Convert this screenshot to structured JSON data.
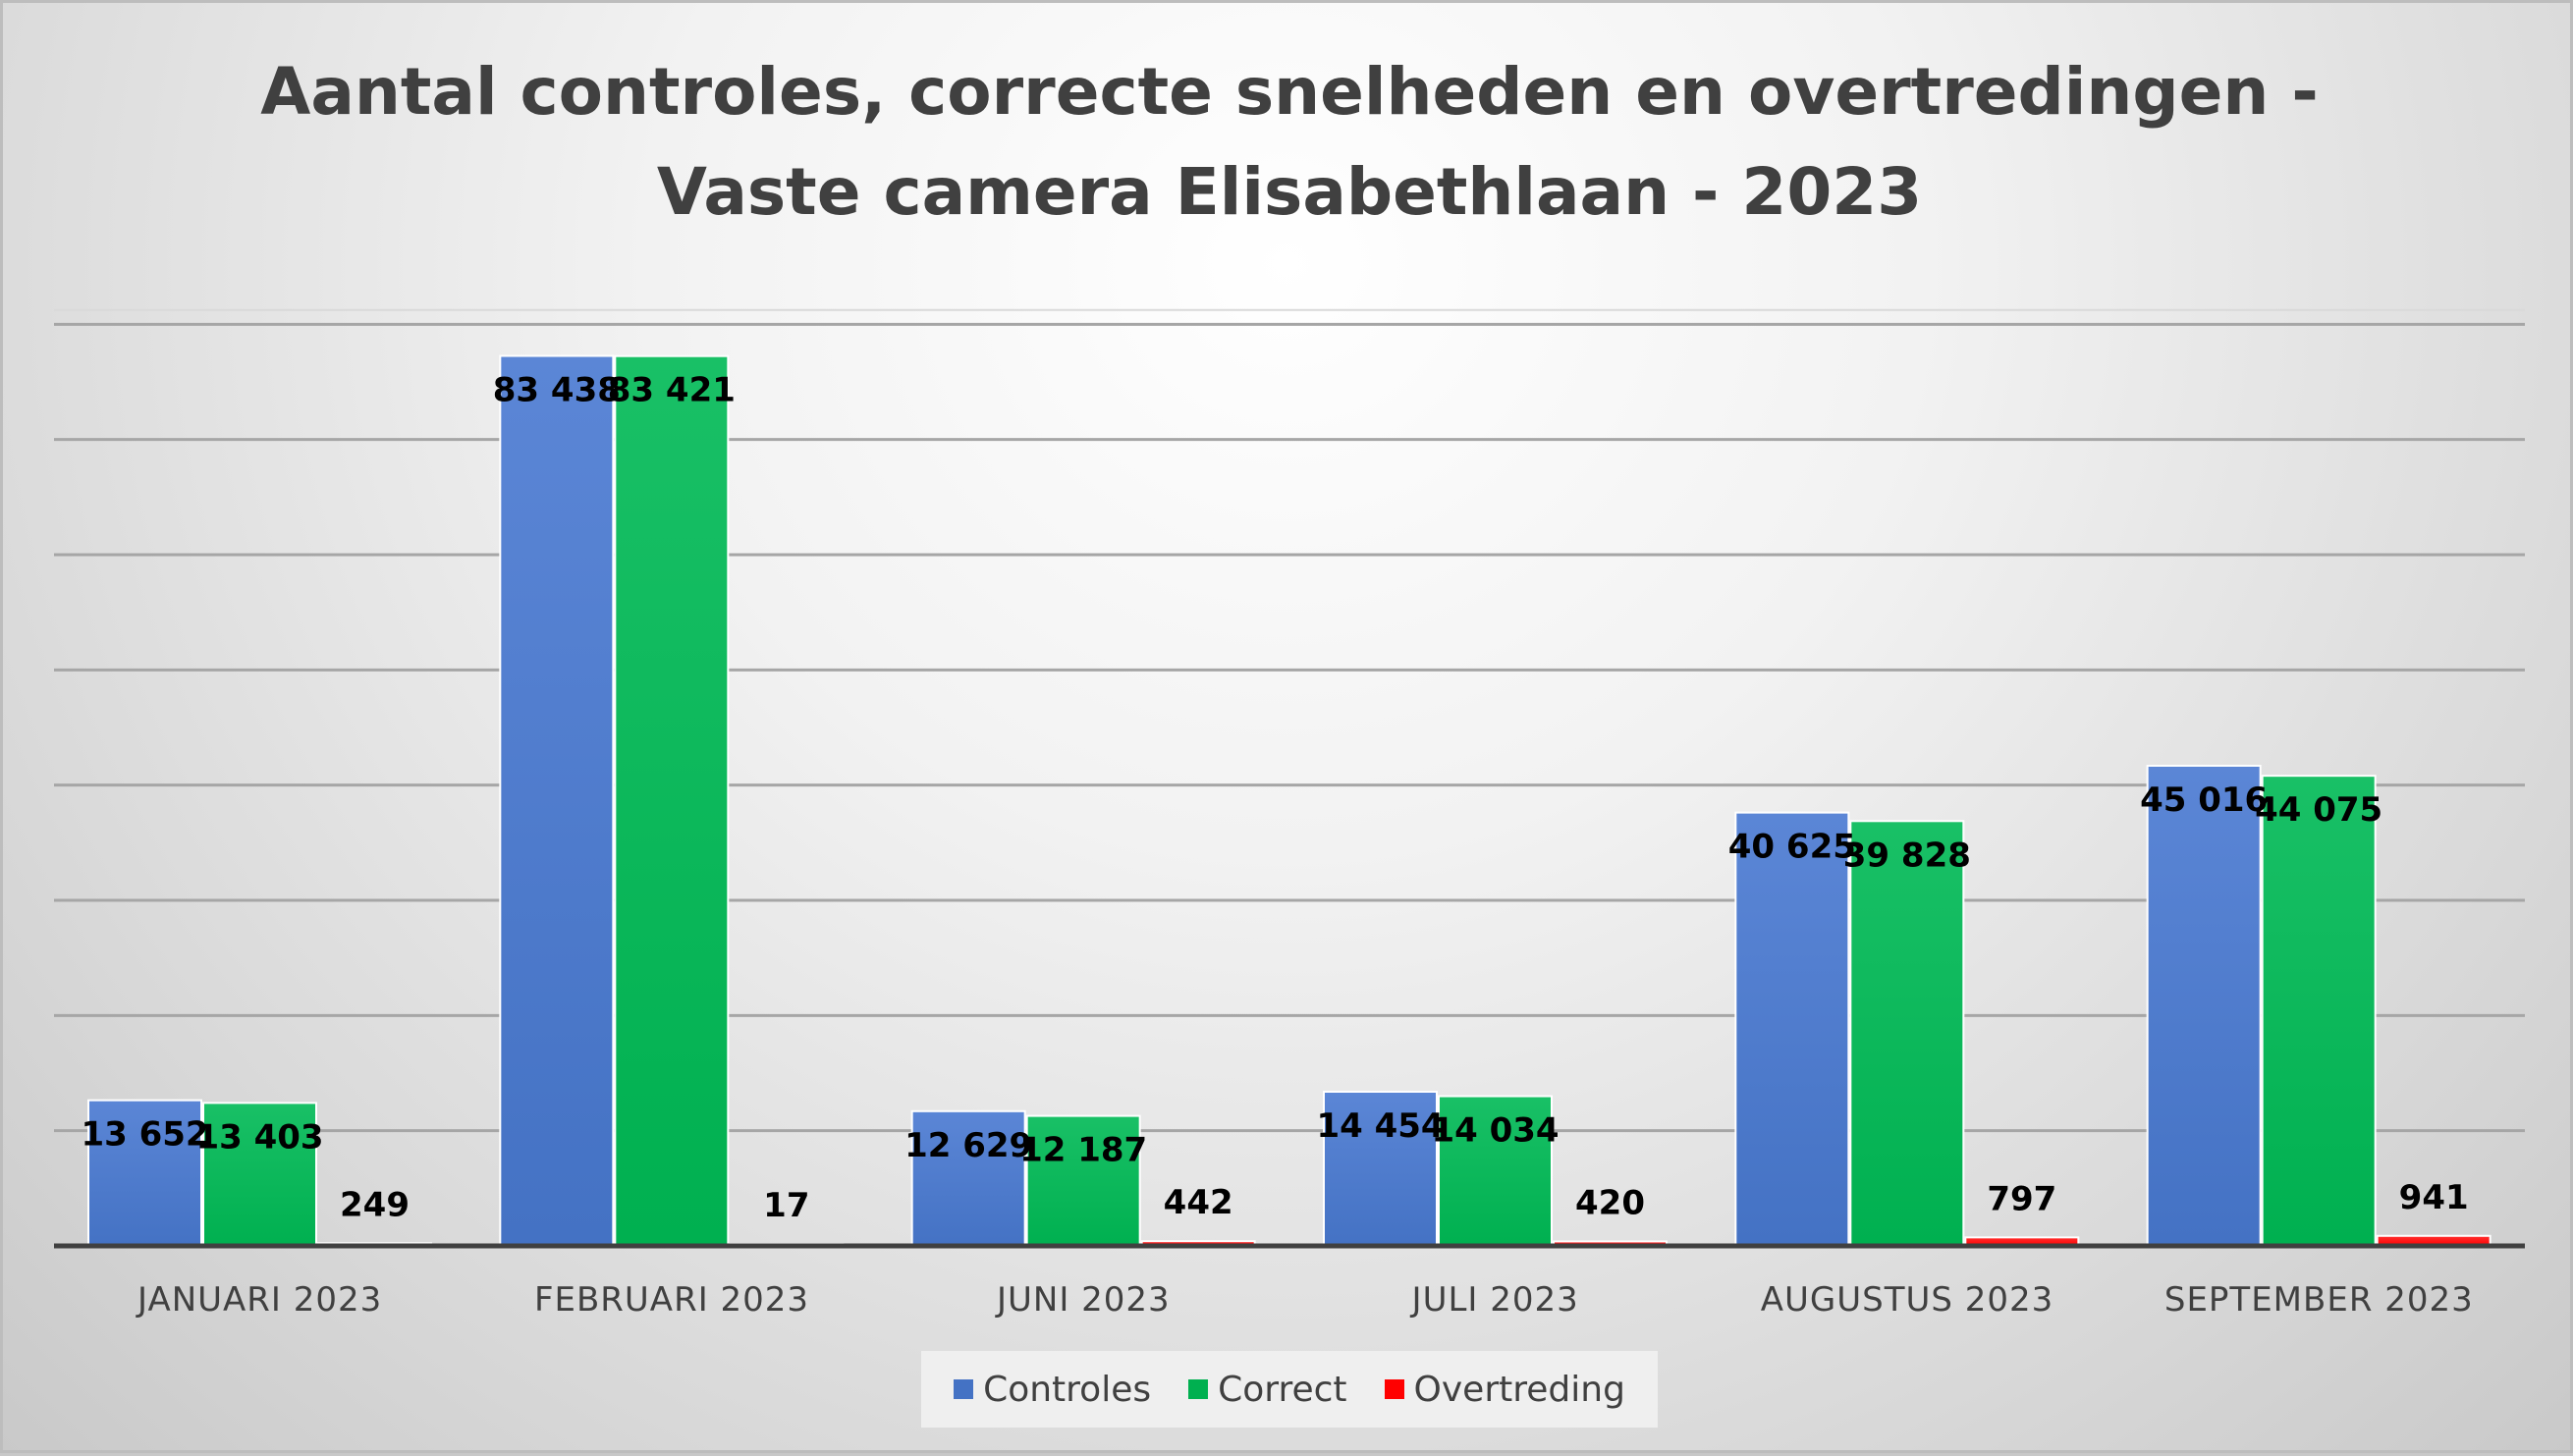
{
  "chart_data": {
    "type": "bar",
    "title_line1": "Aantal controles, correcte snelheden en overtredingen -",
    "title_line2": "Vaste camera Elisabethlaan - 2023",
    "categories": [
      "JANUARI 2023",
      "FEBRUARI 2023",
      "JUNI 2023",
      "JULI 2023",
      "AUGUSTUS 2023",
      "SEPTEMBER 2023"
    ],
    "series": [
      {
        "name": "Controles",
        "color": "#4472c4",
        "values": [
          13652,
          83438,
          12629,
          14454,
          40625,
          45016
        ],
        "labels": [
          "13 652",
          "83 438",
          "12 629",
          "14 454",
          "40 625",
          "45 016"
        ]
      },
      {
        "name": "Correct",
        "color": "#00b050",
        "values": [
          13403,
          83421,
          12187,
          14034,
          39828,
          44075
        ],
        "labels": [
          "13 403",
          "83 421",
          "12 187",
          "14 034",
          "39 828",
          "44 075"
        ]
      },
      {
        "name": "Overtreding",
        "color": "#ff0000",
        "values": [
          249,
          17,
          442,
          420,
          797,
          941
        ],
        "labels": [
          "249",
          "17",
          "442",
          "420",
          "797",
          "941"
        ]
      }
    ],
    "ylim": [
      0,
      90000
    ],
    "grid": true,
    "legend_position": "bottom"
  }
}
